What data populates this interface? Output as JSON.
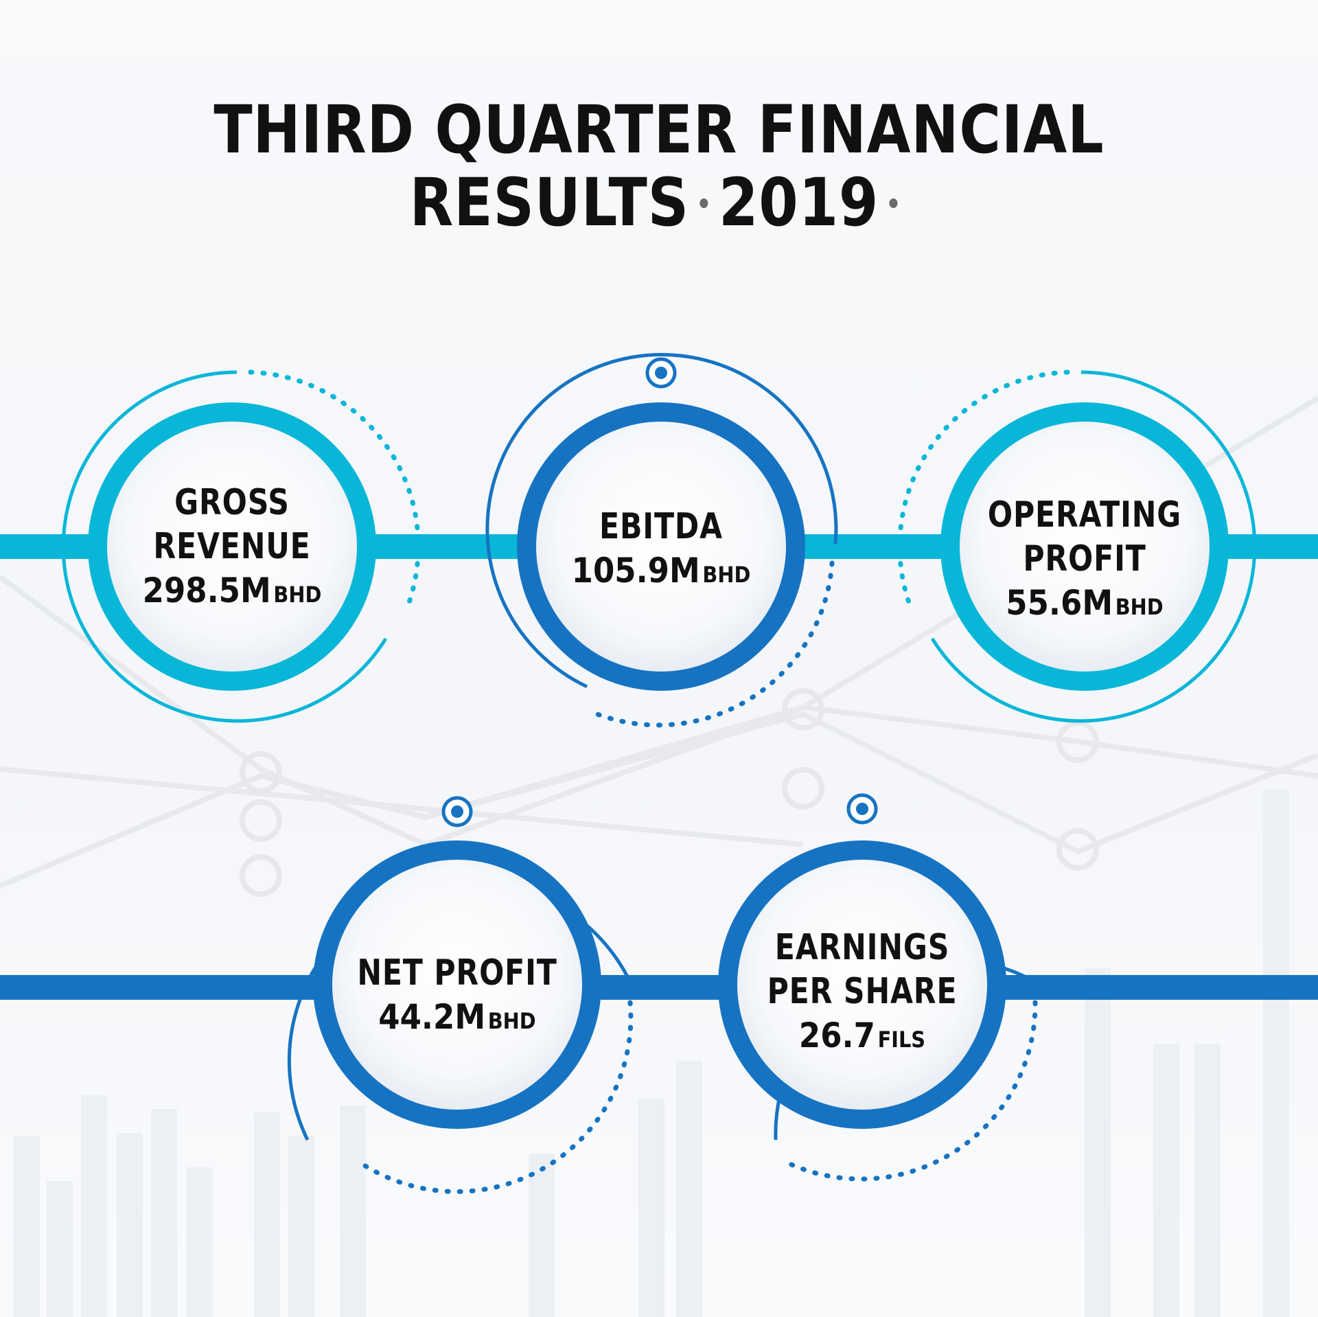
{
  "header": {
    "title_line1": "THIRD QUARTER FINANCIAL",
    "title_line2_text": "RESULTS",
    "title_year": "2019"
  },
  "metrics": [
    {
      "label_line1": "GROSS",
      "label_line2": "REVENUE",
      "value": "298.5M",
      "unit": "BHD"
    },
    {
      "label_line1": "EBITDA",
      "value": "105.9M",
      "unit": "BHD"
    },
    {
      "label_line1": "OPERATING",
      "label_line2": "PROFIT",
      "value": "55.6M",
      "unit": "BHD"
    },
    {
      "label_line1": "NET PROFIT",
      "value": "44.2M",
      "unit": "BHD"
    },
    {
      "label_line1": "EARNINGS",
      "label_line2": "PER SHARE",
      "value": "26.7",
      "unit": "FILS"
    }
  ],
  "colors": {
    "cyan": "#08b6d8",
    "blue": "#1673c2",
    "dark_text": "#111111",
    "title_dot": "#6d6a6a"
  }
}
